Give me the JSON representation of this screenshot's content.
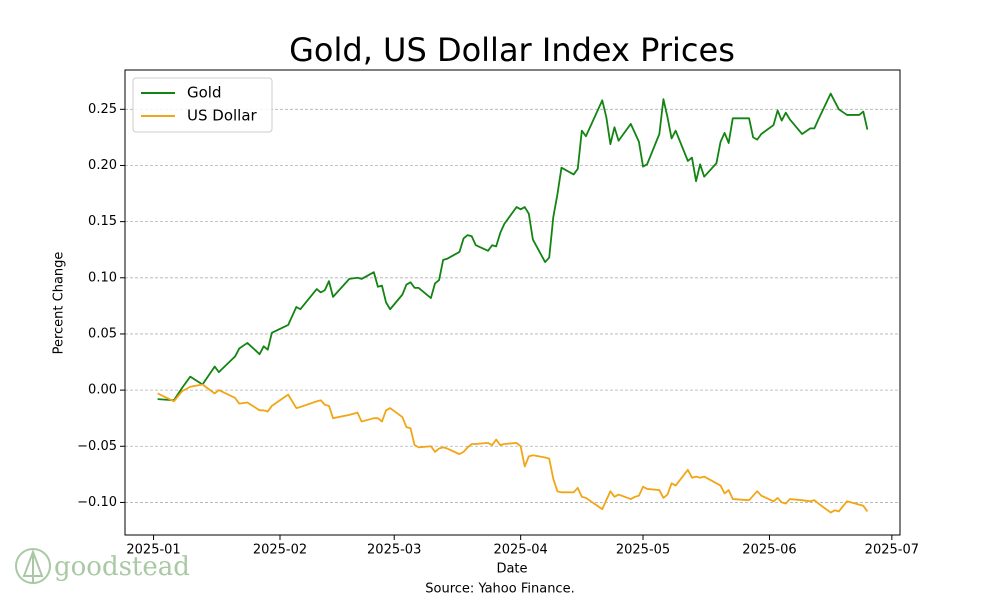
{
  "chart_data": {
    "type": "line",
    "title": "Gold, US Dollar Index Prices",
    "xlabel": "Date",
    "ylabel": "Percent Change",
    "source": "Source: Yahoo Finance.",
    "logo_text": "goodstead",
    "x": [
      "2025-01-02",
      "2025-01-06",
      "2025-01-08",
      "2025-01-10",
      "2025-01-13",
      "2025-01-16",
      "2025-01-17",
      "2025-01-21",
      "2025-01-22",
      "2025-01-24",
      "2025-01-27",
      "2025-01-28",
      "2025-01-29",
      "2025-01-30",
      "2025-02-03",
      "2025-02-05",
      "2025-02-06",
      "2025-02-10",
      "2025-02-11",
      "2025-02-12",
      "2025-02-13",
      "2025-02-14",
      "2025-02-18",
      "2025-02-20",
      "2025-02-21",
      "2025-02-24",
      "2025-02-25",
      "2025-02-26",
      "2025-02-27",
      "2025-02-28",
      "2025-03-03",
      "2025-03-04",
      "2025-03-05",
      "2025-03-06",
      "2025-03-07",
      "2025-03-10",
      "2025-03-11",
      "2025-03-12",
      "2025-03-13",
      "2025-03-14",
      "2025-03-17",
      "2025-03-18",
      "2025-03-19",
      "2025-03-20",
      "2025-03-21",
      "2025-03-24",
      "2025-03-25",
      "2025-03-26",
      "2025-03-27",
      "2025-03-28",
      "2025-03-31",
      "2025-04-01",
      "2025-04-02",
      "2025-04-03",
      "2025-04-04",
      "2025-04-07",
      "2025-04-08",
      "2025-04-09",
      "2025-04-10",
      "2025-04-11",
      "2025-04-14",
      "2025-04-15",
      "2025-04-16",
      "2025-04-17",
      "2025-04-21",
      "2025-04-22",
      "2025-04-23",
      "2025-04-24",
      "2025-04-25",
      "2025-04-28",
      "2025-04-29",
      "2025-04-30",
      "2025-05-01",
      "2025-05-02",
      "2025-05-05",
      "2025-05-06",
      "2025-05-07",
      "2025-05-08",
      "2025-05-09",
      "2025-05-12",
      "2025-05-13",
      "2025-05-14",
      "2025-05-15",
      "2025-05-16",
      "2025-05-19",
      "2025-05-20",
      "2025-05-21",
      "2025-05-22",
      "2025-05-23",
      "2025-05-27",
      "2025-05-28",
      "2025-05-29",
      "2025-05-30",
      "2025-06-02",
      "2025-06-03",
      "2025-06-04",
      "2025-06-05",
      "2025-06-06",
      "2025-06-09",
      "2025-06-11",
      "2025-06-12",
      "2025-06-13",
      "2025-06-16",
      "2025-06-17",
      "2025-06-18",
      "2025-06-20",
      "2025-06-23",
      "2025-06-24",
      "2025-06-25"
    ],
    "series": [
      {
        "name": "Gold",
        "color": "#138413",
        "values": [
          -0.008,
          -0.009,
          0.002,
          0.012,
          0.005,
          0.021,
          0.016,
          0.03,
          0.037,
          0.042,
          0.032,
          0.039,
          0.036,
          0.051,
          0.058,
          0.074,
          0.072,
          0.09,
          0.087,
          0.089,
          0.097,
          0.083,
          0.099,
          0.1,
          0.099,
          0.105,
          0.092,
          0.093,
          0.078,
          0.072,
          0.085,
          0.094,
          0.096,
          0.091,
          0.091,
          0.082,
          0.095,
          0.098,
          0.116,
          0.117,
          0.123,
          0.135,
          0.138,
          0.137,
          0.129,
          0.124,
          0.129,
          0.128,
          0.14,
          0.148,
          0.163,
          0.161,
          0.163,
          0.157,
          0.134,
          0.114,
          0.118,
          0.154,
          0.174,
          0.198,
          0.192,
          0.197,
          0.231,
          0.226,
          0.258,
          0.243,
          0.219,
          0.234,
          0.222,
          0.237,
          0.229,
          0.221,
          0.199,
          0.201,
          0.228,
          0.259,
          0.243,
          0.224,
          0.231,
          0.204,
          0.207,
          0.186,
          0.201,
          0.19,
          0.202,
          0.221,
          0.229,
          0.22,
          0.242,
          0.242,
          0.225,
          0.223,
          0.228,
          0.236,
          0.249,
          0.24,
          0.247,
          0.241,
          0.228,
          0.233,
          0.233,
          0.241,
          0.264,
          0.257,
          0.25,
          0.245,
          0.245,
          0.248,
          0.232
        ]
      },
      {
        "name": "US Dollar",
        "color": "#f2a516",
        "values": [
          -0.003,
          -0.01,
          -0.001,
          0.003,
          0.005,
          -0.003,
          0.0,
          -0.007,
          -0.012,
          -0.011,
          -0.018,
          -0.018,
          -0.019,
          -0.014,
          -0.004,
          -0.016,
          -0.015,
          -0.01,
          -0.009,
          -0.013,
          -0.014,
          -0.025,
          -0.022,
          -0.02,
          -0.028,
          -0.025,
          -0.025,
          -0.028,
          -0.018,
          -0.016,
          -0.024,
          -0.033,
          -0.034,
          -0.049,
          -0.051,
          -0.05,
          -0.055,
          -0.052,
          -0.051,
          -0.052,
          -0.057,
          -0.055,
          -0.051,
          -0.048,
          -0.048,
          -0.047,
          -0.049,
          -0.044,
          -0.049,
          -0.048,
          -0.047,
          -0.05,
          -0.068,
          -0.059,
          -0.058,
          -0.06,
          -0.061,
          -0.079,
          -0.09,
          -0.091,
          -0.091,
          -0.087,
          -0.095,
          -0.096,
          -0.106,
          -0.098,
          -0.09,
          -0.095,
          -0.093,
          -0.097,
          -0.095,
          -0.094,
          -0.086,
          -0.088,
          -0.089,
          -0.096,
          -0.093,
          -0.083,
          -0.085,
          -0.071,
          -0.078,
          -0.077,
          -0.078,
          -0.077,
          -0.083,
          -0.085,
          -0.092,
          -0.089,
          -0.097,
          -0.098,
          -0.094,
          -0.09,
          -0.094,
          -0.099,
          -0.096,
          -0.1,
          -0.101,
          -0.097,
          -0.098,
          -0.099,
          -0.098,
          -0.101,
          -0.109,
          -0.107,
          -0.108,
          -0.099,
          -0.102,
          -0.103,
          -0.108
        ]
      }
    ],
    "xlim": [
      "2024-12-25",
      "2025-07-03"
    ],
    "xticks": [
      "2025-01",
      "2025-02",
      "2025-03",
      "2025-04",
      "2025-05",
      "2025-06",
      "2025-07"
    ],
    "ylim": [
      -0.129,
      0.285
    ],
    "yticks": [
      {
        "value": -0.1,
        "label": "−0.10"
      },
      {
        "value": -0.05,
        "label": "−0.05"
      },
      {
        "value": 0,
        "label": "0.00"
      },
      {
        "value": 0.05,
        "label": "0.05"
      },
      {
        "value": 0.1,
        "label": "0.10"
      },
      {
        "value": 0.15,
        "label": "0.15"
      },
      {
        "value": 0.2,
        "label": "0.20"
      },
      {
        "value": 0.25,
        "label": "0.25"
      }
    ],
    "grid": "y",
    "legend": "upper left"
  }
}
